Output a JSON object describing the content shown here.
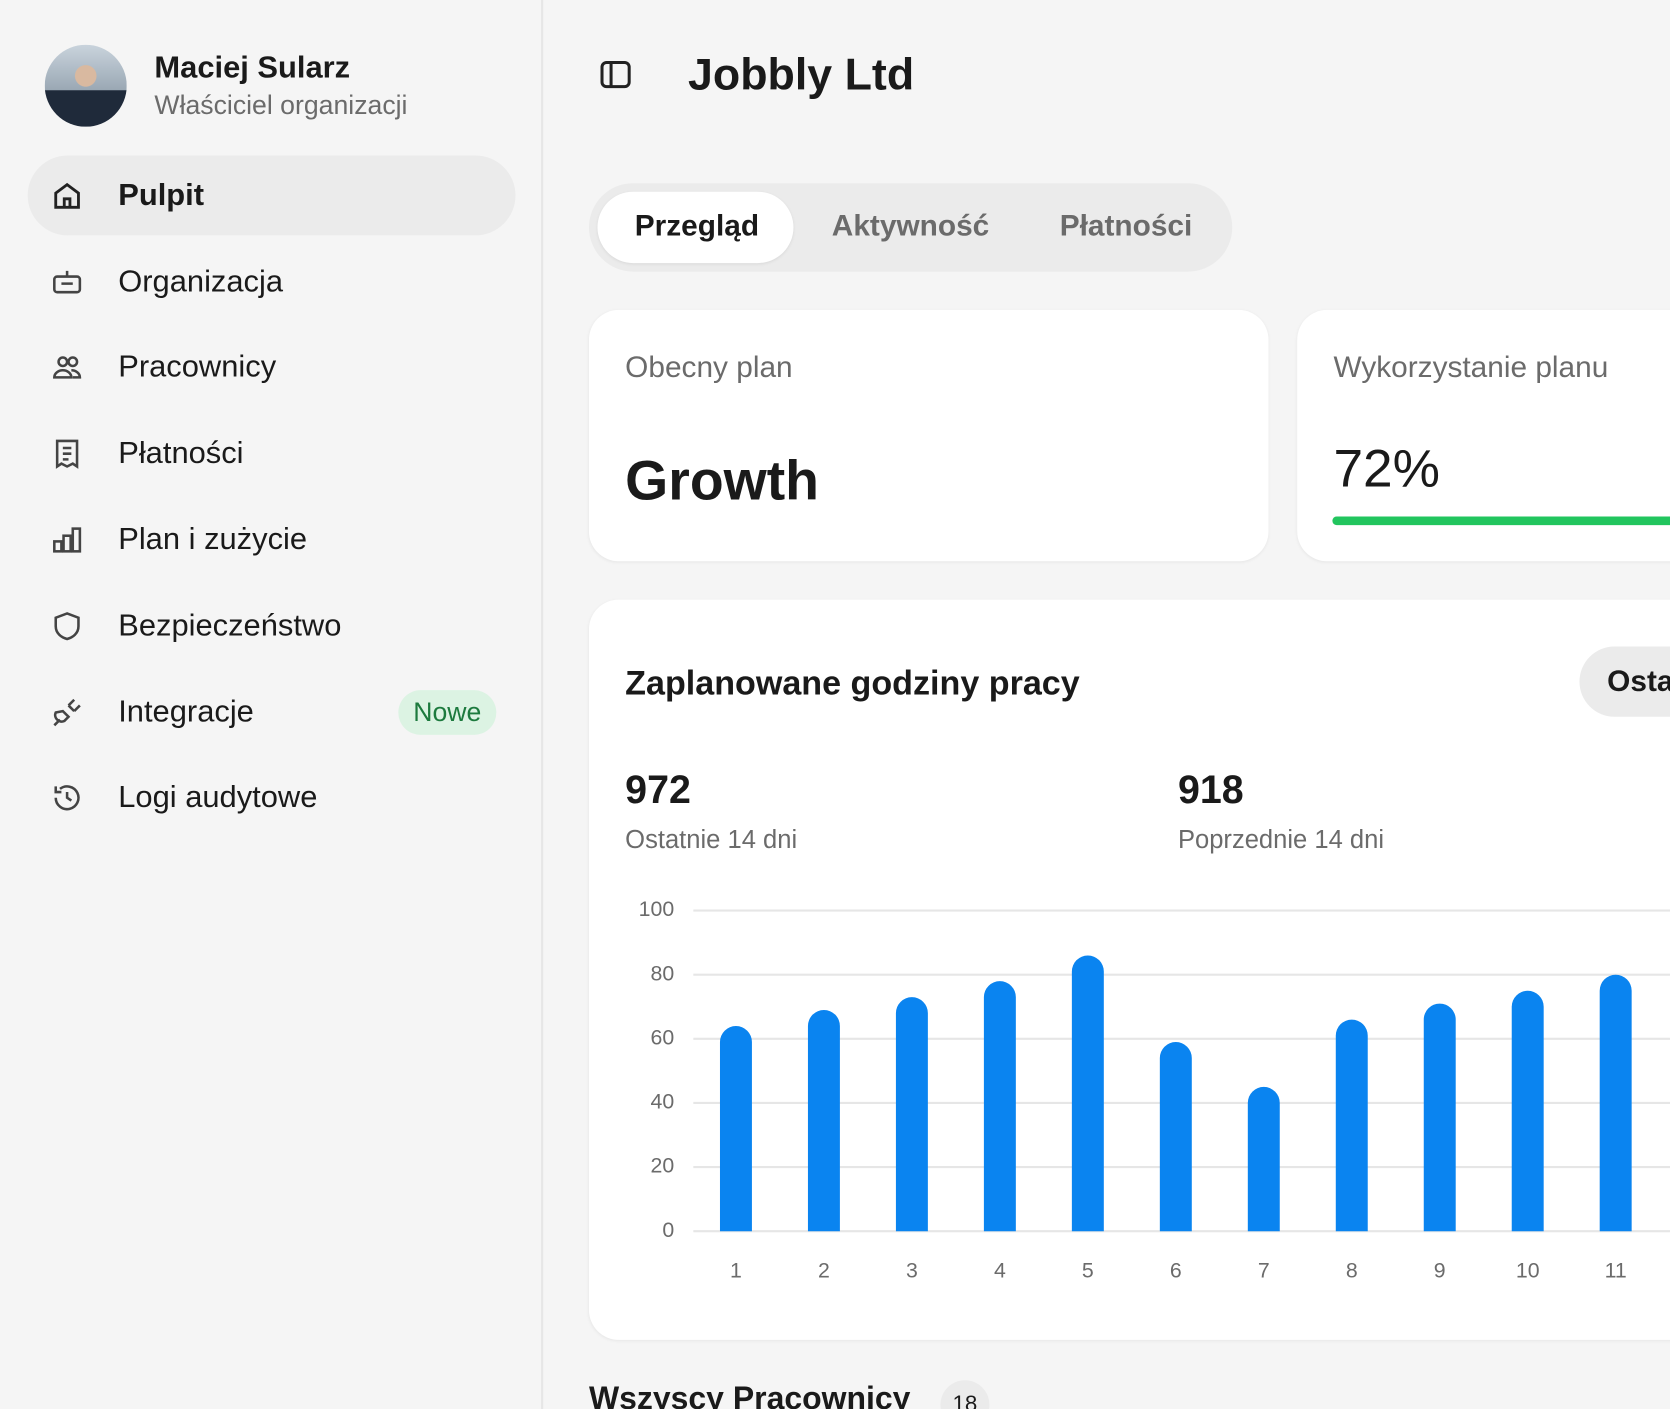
{
  "user": {
    "name": "Maciej Sularz",
    "role": "Właściciel organizacji"
  },
  "nav": [
    {
      "label": "Pulpit"
    },
    {
      "label": "Organizacja"
    },
    {
      "label": "Pracownicy"
    },
    {
      "label": "Płatności"
    },
    {
      "label": "Plan i zużycie"
    },
    {
      "label": "Bezpieczeństwo"
    },
    {
      "label": "Integracje",
      "badge": "Nowe"
    },
    {
      "label": "Logi audytowe"
    }
  ],
  "header": {
    "title": "Jobbly Ltd"
  },
  "tabs": [
    "Przegląd",
    "Aktywność",
    "Płatności"
  ],
  "plan_card": {
    "title": "Obecny plan",
    "plan": "Growth"
  },
  "usage_card": {
    "title": "Wykorzystanie planu",
    "usage": {
      "value": 72,
      "label": "72%"
    }
  },
  "hours_card": {
    "title": "Zaplanowane godziny pracy",
    "range_button": "Osta",
    "stats": [
      {
        "value": 972,
        "label": "Ostatnie 14 dni"
      },
      {
        "value": 918,
        "label": "Poprzednie 14 dni"
      }
    ]
  },
  "chart_data": {
    "type": "bar",
    "categories": [
      "1",
      "2",
      "3",
      "4",
      "5",
      "6",
      "7",
      "8",
      "9",
      "10",
      "11"
    ],
    "values": [
      64,
      69,
      73,
      78,
      86,
      59,
      45,
      66,
      71,
      75,
      80
    ],
    "color": "#0a84f0",
    "ylim": [
      0,
      100
    ],
    "yticks": [
      0,
      20,
      40,
      60,
      80,
      100
    ],
    "grid": true
  },
  "employees": {
    "title": "Wszyscy Pracownicy",
    "count": 18
  }
}
